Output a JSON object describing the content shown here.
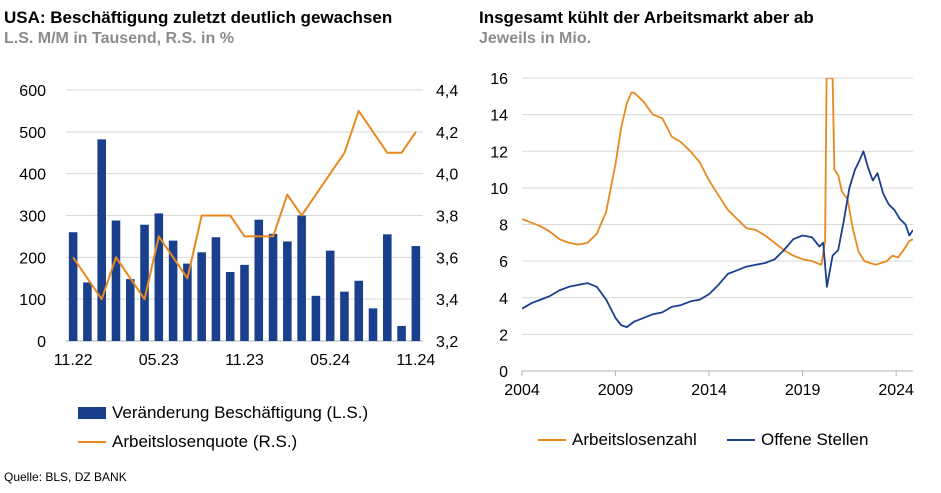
{
  "source": "Quelle: BLS, DZ BANK",
  "colors": {
    "navy": "#1a3f8c",
    "orange": "#e8891f",
    "grid": "#d9d9d9"
  },
  "chart_data": [
    {
      "type": "bar",
      "title": "USA: Beschäftigung zuletzt deutlich gewachsen",
      "subtitle": "L.S. M/M in Tausend, R.S. in %",
      "x_tick_labels": [
        "11.22",
        "05.23",
        "11.23",
        "05.24",
        "11.24"
      ],
      "y_left_ticks": [
        "0",
        "100",
        "200",
        "300",
        "400",
        "500",
        "600"
      ],
      "y_right_ticks": [
        "3,2",
        "3,4",
        "3,6",
        "3,8",
        "4,0",
        "4,2",
        "4,4"
      ],
      "ylim_left": [
        0,
        600
      ],
      "ylim_right": [
        3.2,
        4.4
      ],
      "grid": true,
      "legend_position": "bottom",
      "categories": [
        "11.22",
        "12.22",
        "01.23",
        "02.23",
        "03.23",
        "04.23",
        "05.23",
        "06.23",
        "07.23",
        "08.23",
        "09.23",
        "10.23",
        "11.23",
        "12.23",
        "01.24",
        "02.24",
        "03.24",
        "04.24",
        "05.24",
        "06.24",
        "07.24",
        "08.24",
        "09.24",
        "10.24",
        "11.24"
      ],
      "series": [
        {
          "name": "Veränderung Beschäftigung (L.S.)",
          "axis": "left",
          "kind": "bar",
          "values": [
            260,
            140,
            482,
            288,
            148,
            278,
            305,
            240,
            185,
            212,
            248,
            165,
            182,
            290,
            256,
            238,
            300,
            108,
            216,
            118,
            144,
            78,
            255,
            36,
            227
          ]
        },
        {
          "name": "Arbeitslosenquote (R.S.)",
          "axis": "right",
          "kind": "line",
          "values": [
            3.6,
            3.5,
            3.4,
            3.6,
            3.5,
            3.4,
            3.7,
            3.6,
            3.5,
            3.8,
            3.8,
            3.8,
            3.7,
            3.7,
            3.7,
            3.9,
            3.8,
            3.9,
            4.0,
            4.1,
            4.3,
            4.2,
            4.1,
            4.1,
            4.2
          ]
        }
      ]
    },
    {
      "type": "line",
      "title": "Insgesamt kühlt der Arbeitsmarkt aber ab",
      "subtitle": "Jeweils in Mio.",
      "x_tick_labels": [
        "2004",
        "2009",
        "2014",
        "2019",
        "2024"
      ],
      "y_ticks": [
        "0",
        "2",
        "4",
        "6",
        "8",
        "10",
        "12",
        "14",
        "16"
      ],
      "xlim": [
        2004,
        2024.9
      ],
      "ylim": [
        0,
        16
      ],
      "grid": true,
      "legend_position": "bottom",
      "series": [
        {
          "name": "Arbeitslosenzahl",
          "points": [
            [
              2004.0,
              8.3
            ],
            [
              2004.5,
              8.1
            ],
            [
              2005.0,
              7.9
            ],
            [
              2005.5,
              7.6
            ],
            [
              2006.0,
              7.2
            ],
            [
              2006.5,
              7.0
            ],
            [
              2007.0,
              6.9
            ],
            [
              2007.5,
              7.0
            ],
            [
              2008.0,
              7.5
            ],
            [
              2008.5,
              8.7
            ],
            [
              2009.0,
              11.3
            ],
            [
              2009.3,
              13.3
            ],
            [
              2009.6,
              14.6
            ],
            [
              2009.85,
              15.2
            ],
            [
              2010.0,
              15.2
            ],
            [
              2010.2,
              15.0
            ],
            [
              2010.5,
              14.7
            ],
            [
              2011.0,
              14.0
            ],
            [
              2011.5,
              13.8
            ],
            [
              2012.0,
              12.8
            ],
            [
              2012.5,
              12.5
            ],
            [
              2013.0,
              12.0
            ],
            [
              2013.5,
              11.4
            ],
            [
              2014.0,
              10.4
            ],
            [
              2014.5,
              9.6
            ],
            [
              2015.0,
              8.8
            ],
            [
              2015.5,
              8.3
            ],
            [
              2016.0,
              7.8
            ],
            [
              2016.5,
              7.7
            ],
            [
              2017.0,
              7.4
            ],
            [
              2017.5,
              7.0
            ],
            [
              2018.0,
              6.6
            ],
            [
              2018.5,
              6.3
            ],
            [
              2019.0,
              6.1
            ],
            [
              2019.5,
              6.0
            ],
            [
              2020.0,
              5.8
            ],
            [
              2020.2,
              7.1
            ],
            [
              2020.28,
              16.0
            ],
            [
              2020.6,
              16.0
            ],
            [
              2020.7,
              11.0
            ],
            [
              2020.9,
              10.7
            ],
            [
              2021.1,
              9.8
            ],
            [
              2021.4,
              9.4
            ],
            [
              2021.7,
              7.7
            ],
            [
              2022.0,
              6.5
            ],
            [
              2022.3,
              6.0
            ],
            [
              2022.6,
              5.9
            ],
            [
              2022.9,
              5.8
            ],
            [
              2023.2,
              5.9
            ],
            [
              2023.5,
              6.0
            ],
            [
              2023.8,
              6.3
            ],
            [
              2024.1,
              6.2
            ],
            [
              2024.4,
              6.6
            ],
            [
              2024.7,
              7.1
            ],
            [
              2024.9,
              7.2
            ]
          ]
        },
        {
          "name": "Offene Stellen",
          "points": [
            [
              2004.0,
              3.4
            ],
            [
              2004.5,
              3.7
            ],
            [
              2005.0,
              3.9
            ],
            [
              2005.5,
              4.1
            ],
            [
              2006.0,
              4.4
            ],
            [
              2006.5,
              4.6
            ],
            [
              2007.0,
              4.7
            ],
            [
              2007.5,
              4.8
            ],
            [
              2008.0,
              4.6
            ],
            [
              2008.5,
              3.9
            ],
            [
              2009.0,
              2.9
            ],
            [
              2009.3,
              2.5
            ],
            [
              2009.6,
              2.4
            ],
            [
              2010.0,
              2.7
            ],
            [
              2010.5,
              2.9
            ],
            [
              2011.0,
              3.1
            ],
            [
              2011.5,
              3.2
            ],
            [
              2012.0,
              3.5
            ],
            [
              2012.5,
              3.6
            ],
            [
              2013.0,
              3.8
            ],
            [
              2013.5,
              3.9
            ],
            [
              2014.0,
              4.2
            ],
            [
              2014.5,
              4.7
            ],
            [
              2015.0,
              5.3
            ],
            [
              2015.5,
              5.5
            ],
            [
              2016.0,
              5.7
            ],
            [
              2016.5,
              5.8
            ],
            [
              2017.0,
              5.9
            ],
            [
              2017.5,
              6.1
            ],
            [
              2018.0,
              6.6
            ],
            [
              2018.5,
              7.2
            ],
            [
              2019.0,
              7.4
            ],
            [
              2019.5,
              7.3
            ],
            [
              2019.9,
              6.8
            ],
            [
              2020.1,
              7.0
            ],
            [
              2020.3,
              4.6
            ],
            [
              2020.6,
              6.3
            ],
            [
              2020.9,
              6.6
            ],
            [
              2021.2,
              8.2
            ],
            [
              2021.5,
              10.0
            ],
            [
              2021.8,
              11.0
            ],
            [
              2022.0,
              11.4
            ],
            [
              2022.25,
              12.0
            ],
            [
              2022.5,
              11.1
            ],
            [
              2022.75,
              10.4
            ],
            [
              2023.0,
              10.8
            ],
            [
              2023.3,
              9.7
            ],
            [
              2023.6,
              9.1
            ],
            [
              2023.9,
              8.8
            ],
            [
              2024.2,
              8.3
            ],
            [
              2024.5,
              8.0
            ],
            [
              2024.7,
              7.4
            ],
            [
              2024.9,
              7.7
            ]
          ]
        }
      ]
    }
  ]
}
